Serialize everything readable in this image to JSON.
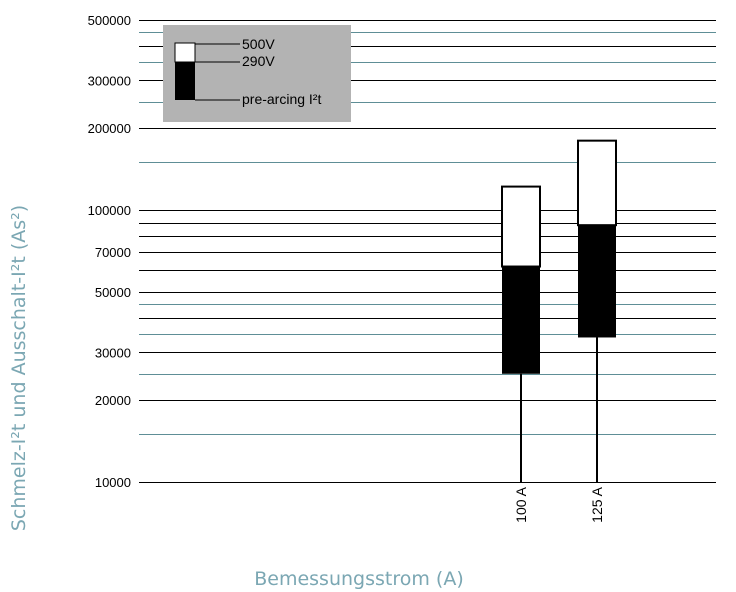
{
  "chart_data": {
    "type": "bar",
    "yscale": "log",
    "ylim": [
      10000,
      500000
    ],
    "ylabel": "Schmelz-I²t und Ausschalt-I²t (As²)",
    "xlabel": "Bemessungsstrom (A)",
    "yticks": [
      {
        "value": 10000,
        "label": "10000"
      },
      {
        "value": 20000,
        "label": "20000"
      },
      {
        "value": 30000,
        "label": "30000"
      },
      {
        "value": 50000,
        "label": "50000"
      },
      {
        "value": 70000,
        "label": "70000"
      },
      {
        "value": 100000,
        "label": "100000"
      },
      {
        "value": 200000,
        "label": "200000"
      },
      {
        "value": 300000,
        "label": "300000"
      },
      {
        "value": 500000,
        "label": "500000"
      }
    ],
    "gridlines": {
      "dark": [
        10000,
        20000,
        30000,
        40000,
        50000,
        60000,
        70000,
        80000,
        90000,
        100000,
        200000,
        300000,
        400000,
        500000
      ],
      "teal": [
        15000,
        25000,
        35000,
        45000,
        150000,
        250000,
        350000,
        450000
      ]
    },
    "categories": [
      "100 A",
      "125 A"
    ],
    "series": [
      {
        "name": "pre-arcing I²t",
        "values": [
          25000,
          34000
        ]
      },
      {
        "name": "290V",
        "values": [
          62000,
          88000
        ]
      },
      {
        "name": "500V",
        "values": [
          122000,
          180000
        ]
      }
    ],
    "legend": {
      "position": "top-left",
      "entries": [
        "500V",
        "290V",
        "pre-arcing I²t"
      ]
    }
  },
  "colors": {
    "grid_dark": "#000000",
    "grid_teal": "#5e8e96",
    "axis_title": "#7ba7b3",
    "legend_bg": "#b3b3b3",
    "bar_fill": "#000000",
    "bar_empty": "#ffffff"
  }
}
